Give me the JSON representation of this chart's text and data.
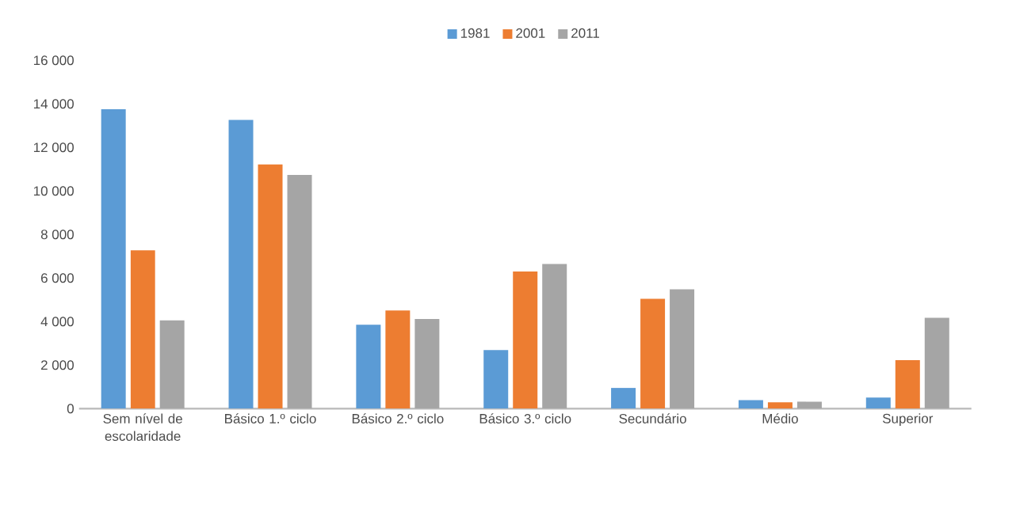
{
  "chart_data": {
    "type": "bar",
    "categories": [
      "Sem nível de escolaridade",
      "Básico 1.º ciclo",
      "Básico 2.º ciclo",
      "Básico 3.º ciclo",
      "Secundário",
      "Médio",
      "Superior"
    ],
    "series": [
      {
        "name": "1981",
        "color": "#5b9bd5",
        "values": [
          13750,
          13260,
          3850,
          2690,
          950,
          390,
          510
        ]
      },
      {
        "name": "2001",
        "color": "#ed7d31",
        "values": [
          7270,
          11220,
          4510,
          6300,
          5040,
          290,
          2230
        ]
      },
      {
        "name": "2011",
        "color": "#a5a5a5",
        "values": [
          4050,
          10740,
          4120,
          6640,
          5480,
          320,
          4170
        ]
      }
    ],
    "ylim": [
      0,
      16000
    ],
    "yticks": [
      0,
      {
        "value": 2000,
        "label": "2 000"
      },
      {
        "value": 4000,
        "label": "4 000"
      },
      {
        "value": 6000,
        "label": "6 000"
      },
      {
        "value": 8000,
        "label": "8 000"
      },
      {
        "value": 10000,
        "label": "10 000"
      },
      {
        "value": 12000,
        "label": "12 000"
      },
      {
        "value": 14000,
        "label": "14 000"
      },
      {
        "value": 16000,
        "label": "16 000"
      }
    ],
    "grid": false,
    "legend": "top"
  }
}
